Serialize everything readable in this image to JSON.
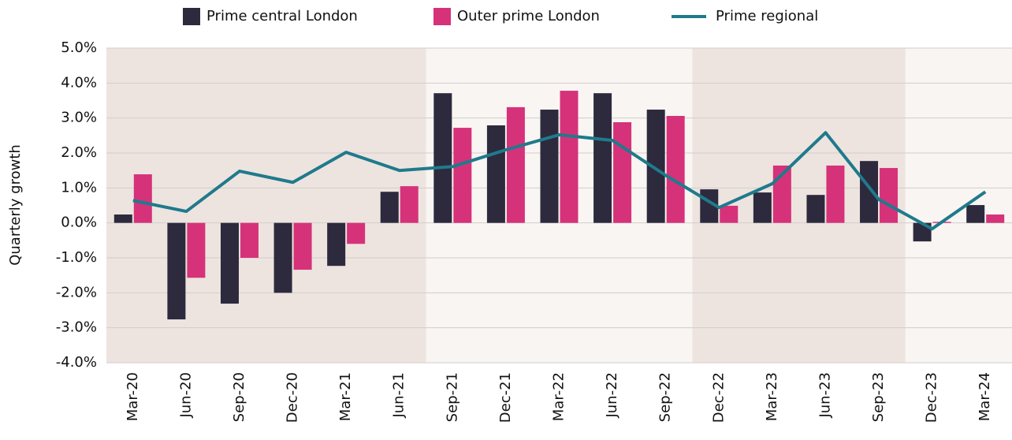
{
  "chart_data": {
    "type": "bar_line",
    "categories": [
      "Mar-20",
      "Jun-20",
      "Sep-20",
      "Dec-20",
      "Mar-21",
      "Jun-21",
      "Sep-21",
      "Dec-21",
      "Mar-22",
      "Jun-22",
      "Sep-22",
      "Dec-22",
      "Mar-23",
      "Jun-23",
      "Sep-23",
      "Dec-23",
      "Mar-24"
    ],
    "series": [
      {
        "name": "Prime central London",
        "color": "#2d2a3e",
        "kind": "bar",
        "values": [
          0.24,
          -2.76,
          -2.31,
          -2.0,
          -1.23,
          0.89,
          3.71,
          2.79,
          3.24,
          3.71,
          3.24,
          0.96,
          0.87,
          0.8,
          1.77,
          -0.53,
          0.51
        ]
      },
      {
        "name": "Outer prime London",
        "color": "#d6327a",
        "kind": "bar",
        "values": [
          1.39,
          -1.57,
          -1.0,
          -1.34,
          -0.6,
          1.05,
          2.72,
          3.31,
          3.78,
          2.88,
          3.06,
          0.49,
          1.64,
          1.64,
          1.57,
          0.03,
          0.24
        ]
      },
      {
        "name": "Prime regional",
        "color": "#1f7a8c",
        "kind": "line",
        "values": [
          0.64,
          0.33,
          1.48,
          1.16,
          2.02,
          1.5,
          1.61,
          2.09,
          2.52,
          2.36,
          1.36,
          0.44,
          1.12,
          2.58,
          0.67,
          -0.17,
          0.89
        ]
      }
    ],
    "y_label": "Quarterly growth",
    "ylim": [
      -4,
      5
    ],
    "yticks": [
      {
        "value": 5,
        "label": "5.0%"
      },
      {
        "value": 4,
        "label": "4.0%"
      },
      {
        "value": 3,
        "label": "3.0%"
      },
      {
        "value": 2,
        "label": "2.0%"
      },
      {
        "value": 1,
        "label": "1.0%"
      },
      {
        "value": 0,
        "label": "0.0%"
      },
      {
        "value": -1,
        "label": "-1.0%"
      },
      {
        "value": -2,
        "label": "-2.0%"
      },
      {
        "value": -3,
        "label": "-3.0%"
      },
      {
        "value": -4,
        "label": "-4.0%"
      }
    ],
    "grid": true,
    "legend": "top",
    "background_bands": [
      {
        "from": "Mar-20",
        "to": "Jun-21",
        "color": "#ede4df"
      },
      {
        "from": "Sep-21",
        "to": "Sep-22",
        "color": "#f9f5f2"
      },
      {
        "from": "Dec-22",
        "to": "Sep-23",
        "color": "#ede4df"
      },
      {
        "from": "Dec-23",
        "to": "Mar-24",
        "color": "#f9f5f2"
      }
    ]
  }
}
